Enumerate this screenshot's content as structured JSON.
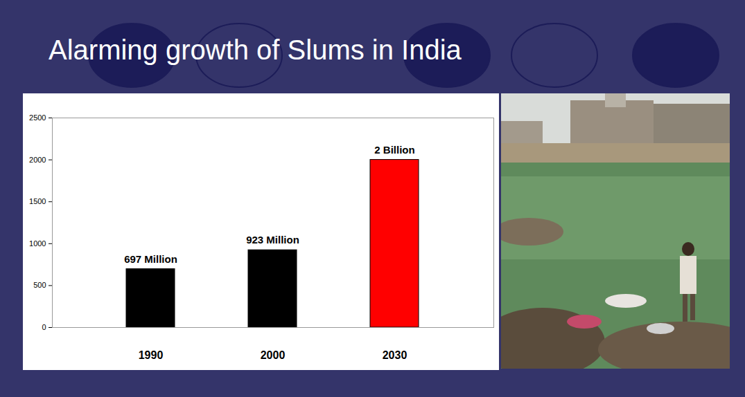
{
  "chart_data": {
    "type": "bar",
    "title": "Alarming growth of Slums in India",
    "categories": [
      "1990",
      "2000",
      "2030"
    ],
    "values": [
      697,
      923,
      2000
    ],
    "value_labels": [
      "697 Million",
      "923 Million",
      "2 Billion"
    ],
    "colors": [
      "#000000",
      "#000000",
      "#ff0000"
    ],
    "ylim": [
      0,
      2500
    ],
    "yticks": [
      0,
      500,
      1000,
      1500,
      2000,
      2500
    ],
    "grid": false,
    "data_labels": true
  }
}
